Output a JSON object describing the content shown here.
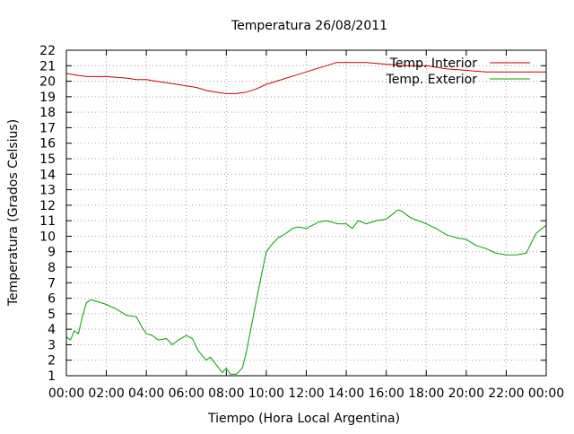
{
  "chart_data": {
    "type": "line",
    "title": "Temperatura 26/08/2011",
    "xlabel": "Tiempo (Hora Local Argentina)",
    "ylabel": "Temperatura (Grados Celsius)",
    "xlim": [
      0,
      24
    ],
    "ylim": [
      1,
      22
    ],
    "x_ticks": [
      "00:00",
      "02:00",
      "04:00",
      "06:00",
      "08:00",
      "10:00",
      "12:00",
      "14:00",
      "16:00",
      "18:00",
      "20:00",
      "22:00",
      "00:00"
    ],
    "y_ticks": [
      "1",
      "2",
      "3",
      "4",
      "5",
      "6",
      "7",
      "8",
      "9",
      "10",
      "11",
      "12",
      "13",
      "14",
      "15",
      "16",
      "17",
      "18",
      "19",
      "20",
      "21",
      "22"
    ],
    "grid": true,
    "legend_position": "top-right",
    "series": [
      {
        "name": "Temp. Interior",
        "color": "#cc0000",
        "x": [
          0,
          0.5,
          1,
          2,
          3,
          3.5,
          4,
          4.5,
          5,
          5.5,
          6,
          6.5,
          7,
          7.5,
          8,
          8.5,
          9,
          9.5,
          10,
          10.5,
          11,
          11.5,
          12,
          12.5,
          13,
          13.5,
          14,
          15,
          16,
          17,
          18,
          19,
          20,
          21,
          22,
          23,
          24
        ],
        "values": [
          20.5,
          20.4,
          20.3,
          20.3,
          20.2,
          20.1,
          20.1,
          20.0,
          19.9,
          19.8,
          19.7,
          19.6,
          19.4,
          19.3,
          19.2,
          19.2,
          19.3,
          19.5,
          19.8,
          20.0,
          20.2,
          20.4,
          20.6,
          20.8,
          21.0,
          21.2,
          21.2,
          21.2,
          21.1,
          21.0,
          21.0,
          20.8,
          20.7,
          20.6,
          20.6,
          20.6,
          20.6
        ]
      },
      {
        "name": "Temp. Exterior",
        "color": "#00a000",
        "x": [
          0,
          0.2,
          0.4,
          0.6,
          0.8,
          1.0,
          1.2,
          1.5,
          2.0,
          2.5,
          3.0,
          3.5,
          3.8,
          4.0,
          4.3,
          4.6,
          5.0,
          5.3,
          5.6,
          6.0,
          6.3,
          6.6,
          7.0,
          7.2,
          7.5,
          7.8,
          8.0,
          8.2,
          8.5,
          8.8,
          9.0,
          9.3,
          9.6,
          10.0,
          10.3,
          10.6,
          11.0,
          11.3,
          11.6,
          12.0,
          12.3,
          12.6,
          13.0,
          13.3,
          13.6,
          14.0,
          14.3,
          14.6,
          15.0,
          15.5,
          16.0,
          16.3,
          16.6,
          16.8,
          17.2,
          17.6,
          18.0,
          18.5,
          19.0,
          19.5,
          20.0,
          20.5,
          21.0,
          21.5,
          22.0,
          22.5,
          23.0,
          23.5,
          24.0
        ],
        "values": [
          3.5,
          3.3,
          3.9,
          3.7,
          4.8,
          5.7,
          5.9,
          5.8,
          5.6,
          5.3,
          4.9,
          4.8,
          4.1,
          3.7,
          3.6,
          3.3,
          3.4,
          3.0,
          3.3,
          3.6,
          3.4,
          2.6,
          2.0,
          2.2,
          1.7,
          1.2,
          1.5,
          1.1,
          1.1,
          1.5,
          2.5,
          4.5,
          6.5,
          9.0,
          9.5,
          9.9,
          10.2,
          10.5,
          10.6,
          10.5,
          10.7,
          10.9,
          11.0,
          10.9,
          10.8,
          10.8,
          10.5,
          11.0,
          10.8,
          11.0,
          11.1,
          11.4,
          11.7,
          11.6,
          11.2,
          11.0,
          10.8,
          10.5,
          10.1,
          9.9,
          9.8,
          9.4,
          9.2,
          8.9,
          8.8,
          8.8,
          8.9,
          10.2,
          10.7
        ]
      }
    ]
  }
}
